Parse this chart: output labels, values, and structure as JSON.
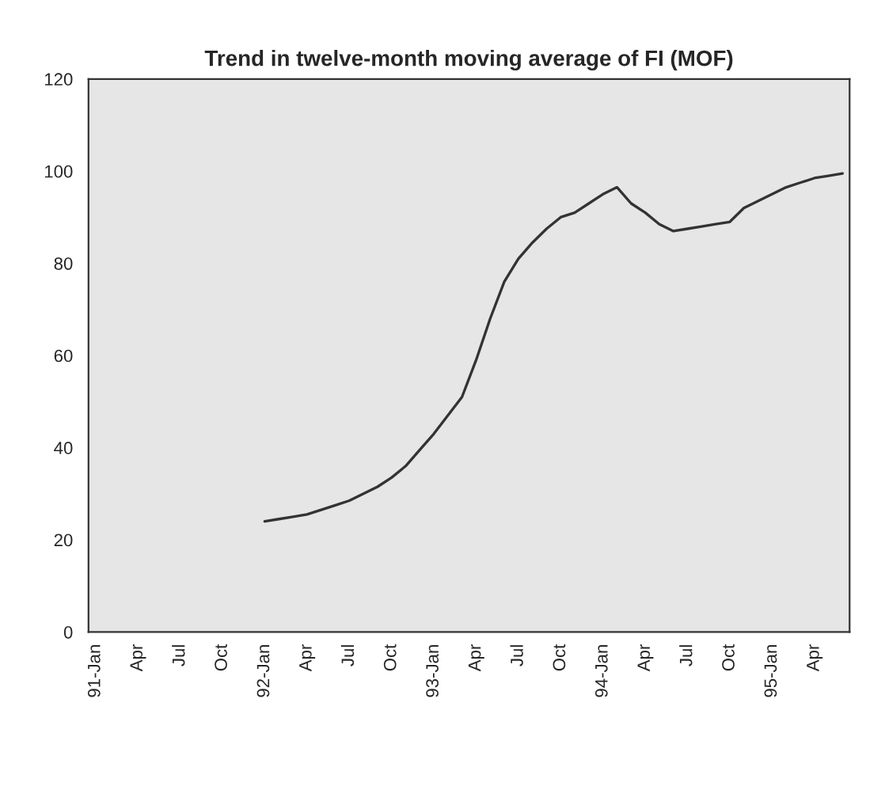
{
  "chart_data": {
    "type": "line",
    "title": "Trend in twelve-month moving average of FI (MOF)",
    "categories": [
      "91-Jan",
      null,
      null,
      "Apr",
      null,
      null,
      "Jul",
      null,
      null,
      "Oct",
      null,
      null,
      "92-Jan",
      null,
      null,
      "Apr",
      null,
      null,
      "Jul",
      null,
      null,
      "Oct",
      null,
      null,
      "93-Jan",
      null,
      null,
      "Apr",
      null,
      null,
      "Jul",
      null,
      null,
      "Oct",
      null,
      null,
      "94-Jan",
      null,
      null,
      "Apr",
      null,
      null,
      "Jul",
      null,
      null,
      "Oct",
      null,
      null,
      "95-Jan",
      null,
      null,
      "Apr",
      null,
      null
    ],
    "series": [
      {
        "color": "#333333",
        "values": [
          null,
          null,
          null,
          null,
          null,
          null,
          null,
          null,
          null,
          null,
          null,
          null,
          24,
          24.5,
          25,
          25.5,
          26.5,
          27.5,
          28.5,
          30,
          31.5,
          33.5,
          36,
          39.5,
          43,
          47,
          51,
          59,
          68,
          76,
          81,
          84.5,
          87.5,
          90,
          91,
          93,
          95,
          96.5,
          93,
          91,
          88.5,
          87,
          87.5,
          88,
          88.5,
          89,
          92,
          93.5,
          95,
          96.5,
          97.5,
          98.5,
          99,
          99.5
        ]
      }
    ],
    "ylim": [
      0,
      120
    ],
    "yticks": [
      0,
      20,
      40,
      60,
      80,
      100,
      120
    ],
    "grid": false,
    "legend": false,
    "marker": "none",
    "line_style": "solid"
  }
}
